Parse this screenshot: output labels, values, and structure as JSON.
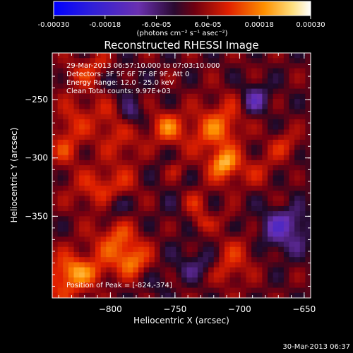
{
  "colorbar": {
    "tick_labels": [
      "-0.00030",
      "-0.00018",
      "-6.0e-05",
      "6.0e-05",
      "0.00018",
      "0.00030"
    ],
    "range": [
      -0.0003,
      0.0003
    ],
    "unit_label": "(photons cm⁻² s⁻¹ asec⁻²)"
  },
  "chart_data": {
    "type": "heatmap",
    "title": "Reconstructed RHESSI Image",
    "xlabel": "Heliocentric X (arcsec)",
    "ylabel": "Heliocentric Y (arcsec)",
    "xlim": [
      -845,
      -645
    ],
    "ylim": [
      -420,
      -210
    ],
    "x_ticks": [
      -800,
      -750,
      -700,
      -650
    ],
    "x_tick_labels": [
      "−800",
      "−750",
      "−700",
      "−650"
    ],
    "y_ticks": [
      -250,
      -300,
      -350
    ],
    "y_tick_labels": [
      "−250",
      "−300",
      "−350"
    ],
    "annotations": [
      "29-Mar-2013 06:57:10.000 to 07:03:10.000",
      "Detectors: 3F 5F 6F 7F 8F 9F, Att 0",
      "Energy Range: 12.0 - 25.0 keV",
      "Clean     Total counts: 9.97E+03"
    ],
    "peak_label": "Position of Peak = [-824,-374]",
    "peak_position": [
      -824,
      -374
    ],
    "total_counts": 9970,
    "energy_range_kev": [
      12.0,
      25.0
    ],
    "colormap": [
      "#0000ff",
      "#5a2ca8",
      "#1a0a1a",
      "#a00000",
      "#ff4000",
      "#ffb000",
      "#ffffff"
    ]
  },
  "footer": {
    "timestamp": "30-Mar-2013 06:37"
  }
}
